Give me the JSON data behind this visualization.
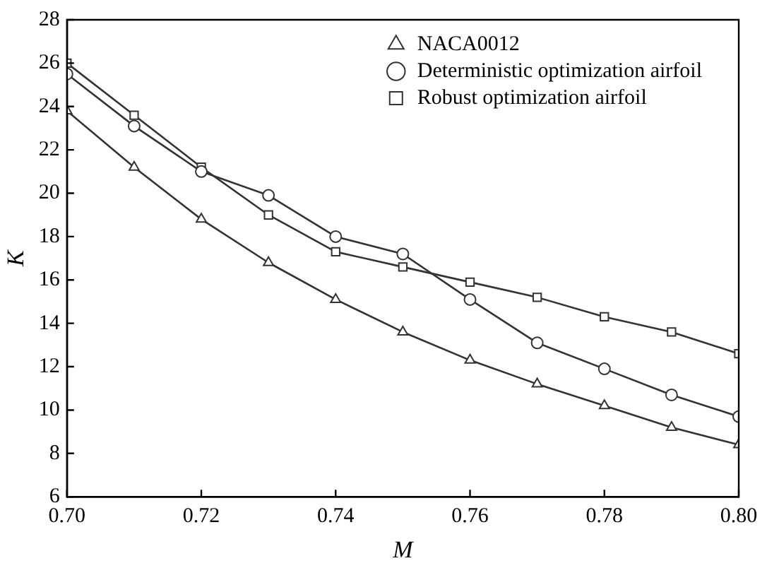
{
  "chart_data": {
    "type": "line",
    "xlabel": "M",
    "ylabel": "K",
    "x": [
      0.7,
      0.71,
      0.72,
      0.73,
      0.74,
      0.75,
      0.76,
      0.77,
      0.78,
      0.79,
      0.8
    ],
    "series": [
      {
        "name": "NACA0012",
        "color": "#333333",
        "marker": "triangle",
        "values": [
          23.8,
          21.2,
          18.8,
          16.8,
          15.1,
          13.6,
          12.3,
          11.2,
          10.2,
          9.2,
          8.4
        ]
      },
      {
        "name": "Deterministic optimization airfoil",
        "color": "#333333",
        "marker": "circle",
        "values": [
          25.5,
          23.1,
          21.0,
          19.9,
          18.0,
          17.2,
          15.1,
          13.1,
          11.9,
          10.7,
          9.7
        ]
      },
      {
        "name": "Robust optimization airfoil",
        "color": "#333333",
        "marker": "square",
        "values": [
          26.0,
          23.6,
          21.2,
          19.0,
          17.3,
          16.6,
          15.9,
          15.2,
          14.3,
          13.6,
          12.6
        ]
      }
    ],
    "xlim": [
      0.7,
      0.8
    ],
    "xticks": [
      {
        "value": 0.7,
        "label": "0.70"
      },
      {
        "value": 0.72,
        "label": "0.72"
      },
      {
        "value": 0.74,
        "label": "0.74"
      },
      {
        "value": 0.76,
        "label": "0.76"
      },
      {
        "value": 0.78,
        "label": "0.78"
      },
      {
        "value": 0.8,
        "label": "0.80"
      }
    ],
    "ylim": [
      6,
      28
    ],
    "yticks": [
      6,
      8,
      10,
      12,
      14,
      16,
      18,
      20,
      22,
      24,
      26,
      28
    ],
    "grid": false,
    "legend": "top right",
    "line_style": "solid"
  }
}
